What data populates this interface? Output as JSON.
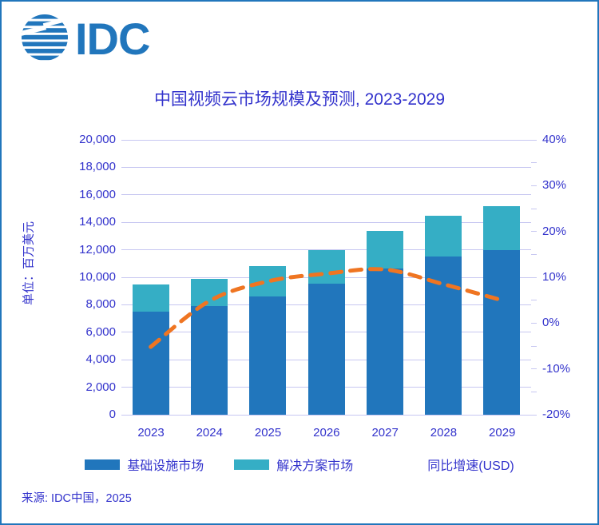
{
  "logo": {
    "wordmark": "IDC"
  },
  "title": "中国视频云市场规模及预测, 2023-2029",
  "y_axis_title": "单位：百万美元",
  "source": "来源: IDC中国，2025",
  "colors": {
    "brand_blue": "#2176BC",
    "bar_infrastructure": "#2176BC",
    "bar_solutions": "#35AEC5",
    "growth_line": "#EF7522",
    "text_blue": "#3333CC",
    "gridline": "#C7C7F1"
  },
  "legend": {
    "items": [
      {
        "label": "基础设施市场",
        "type": "bar",
        "color": "#2176BC"
      },
      {
        "label": "解决方案市场",
        "type": "bar",
        "color": "#35AEC5"
      },
      {
        "label": "同比增速(USD)",
        "type": "line",
        "color": "#EF7522"
      }
    ]
  },
  "chart_data": {
    "type": "bar",
    "subtype": "stacked-bar-with-line",
    "title": "中国视频云市场规模及预测, 2023-2029",
    "categories": [
      "2023",
      "2024",
      "2025",
      "2026",
      "2027",
      "2028",
      "2029"
    ],
    "series": [
      {
        "name": "基础设施市场",
        "type": "bar",
        "stack": "market",
        "axis": "left",
        "color": "#2176BC",
        "values": [
          7500,
          7900,
          8600,
          9550,
          10650,
          11500,
          12000
        ]
      },
      {
        "name": "解决方案市场",
        "type": "bar",
        "stack": "market",
        "axis": "left",
        "color": "#35AEC5",
        "values": [
          1950,
          2000,
          2200,
          2400,
          2700,
          3000,
          3200
        ]
      },
      {
        "name": "同比增速(USD)",
        "type": "line",
        "style": "dashed",
        "axis": "right",
        "color": "#EF7522",
        "values": [
          -5.2,
          4.8,
          9.1,
          10.8,
          11.7,
          8.5,
          5.0
        ]
      }
    ],
    "totals": [
      9450,
      9900,
      10800,
      11950,
      13350,
      14500,
      15200
    ],
    "ylabel": "单位：百万美元",
    "xlabel": "",
    "ylim": [
      0,
      20000
    ],
    "y_tick_step": 2000,
    "y_tick_format": "thousands-comma",
    "y2lim": [
      -20,
      40
    ],
    "y2_tick_step": 10,
    "y2_minor_tick_step": 5,
    "y2_tick_format": "percent",
    "grid": true,
    "legend_position": "bottom"
  }
}
